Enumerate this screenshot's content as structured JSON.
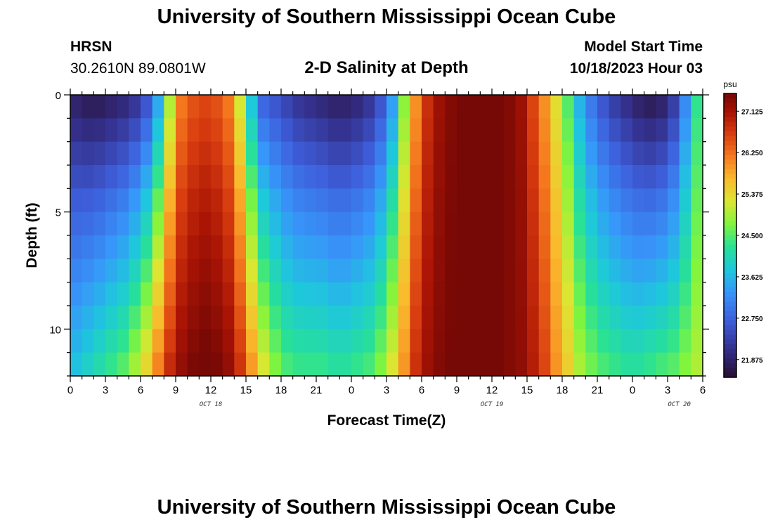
{
  "header": {
    "title": "University of Southern Mississippi Ocean Cube",
    "station_name": "HRSN",
    "coordinates": "30.2610N  89.0801W",
    "subtitle": "2-D Salinity at Depth",
    "model_start_label": "Model Start Time",
    "model_start_value": "10/18/2023 Hour 03"
  },
  "footer": {
    "title": "University of Southern Mississippi Ocean Cube"
  },
  "chart_data": {
    "type": "heatmap",
    "xlabel": "Forecast Time(Z)",
    "ylabel": "Depth (ft)",
    "x_unit": "hours since 10/18 00Z",
    "xlim": [
      0,
      54
    ],
    "ylim": [
      0,
      12
    ],
    "y_inverted": true,
    "x_tick_labels": [
      "0",
      "3",
      "6",
      "9",
      "12",
      "15",
      "18",
      "21",
      "0",
      "3",
      "6",
      "9",
      "12",
      "15",
      "18",
      "21",
      "0",
      "3",
      "6"
    ],
    "x_tick_hours": [
      0,
      3,
      6,
      9,
      12,
      15,
      18,
      21,
      24,
      27,
      30,
      33,
      36,
      39,
      42,
      45,
      48,
      51,
      54
    ],
    "date_labels": [
      {
        "text": "OCT 18",
        "hour": 12
      },
      {
        "text": "OCT 19",
        "hour": 36
      },
      {
        "text": "OCT 20",
        "hour": 52
      }
    ],
    "y_ticks": [
      0,
      5,
      10
    ],
    "y_tick_labels": [
      "0",
      "5",
      "10"
    ],
    "colorbar": {
      "units": "psu",
      "vmin": 21.5,
      "vmax": 27.5,
      "tick_values": [
        21.875,
        22.75,
        23.625,
        24.5,
        25.375,
        26.25,
        27.125
      ],
      "tick_labels": [
        "21.875",
        "22.750",
        "23.625",
        "24.500",
        "25.375",
        "26.250",
        "27.125"
      ]
    },
    "depths_ft": [
      0.5,
      1.5,
      2.5,
      3.5,
      4.5,
      5.5,
      6.5,
      7.5,
      8.5,
      9.5,
      10.5,
      11.5
    ],
    "hours": [
      0,
      1,
      2,
      3,
      4,
      5,
      6,
      7,
      8,
      9,
      10,
      11,
      12,
      13,
      14,
      15,
      16,
      17,
      18,
      19,
      20,
      21,
      22,
      23,
      24,
      25,
      26,
      27,
      28,
      29,
      30,
      31,
      32,
      33,
      34,
      35,
      36,
      37,
      38,
      39,
      40,
      41,
      42,
      43,
      44,
      45,
      46,
      47,
      48,
      49,
      50,
      51,
      52,
      53
    ],
    "surface_salinity_psu": [
      21.9,
      21.8,
      21.8,
      21.9,
      22.0,
      22.2,
      22.6,
      23.5,
      25.0,
      26.2,
      26.5,
      26.6,
      26.5,
      26.2,
      25.2,
      23.8,
      22.8,
      22.6,
      22.4,
      22.2,
      22.1,
      22.0,
      21.9,
      21.9,
      22.0,
      22.2,
      22.6,
      23.4,
      24.8,
      26.0,
      26.8,
      27.2,
      27.4,
      27.5,
      27.5,
      27.5,
      27.5,
      27.4,
      27.2,
      26.6,
      26.0,
      25.3,
      24.5,
      23.6,
      23.0,
      22.6,
      22.3,
      22.1,
      21.9,
      21.8,
      21.9,
      22.3,
      23.2,
      24.3
    ],
    "bottom_salinity_psu": [
      23.8,
      24.0,
      24.2,
      24.4,
      24.6,
      25.0,
      25.5,
      26.2,
      26.9,
      27.3,
      27.5,
      27.6,
      27.5,
      27.3,
      26.8,
      26.0,
      25.3,
      24.8,
      24.5,
      24.4,
      24.4,
      24.4,
      24.3,
      24.3,
      24.4,
      24.5,
      24.8,
      25.3,
      26.0,
      26.8,
      27.2,
      27.4,
      27.5,
      27.5,
      27.5,
      27.5,
      27.5,
      27.4,
      27.3,
      27.0,
      26.6,
      26.0,
      25.5,
      25.0,
      24.7,
      24.5,
      24.4,
      24.3,
      24.3,
      24.4,
      24.5,
      24.6,
      24.8,
      25.0
    ],
    "depth_weight": [
      0.0,
      0.1,
      0.2,
      0.3,
      0.4,
      0.48,
      0.56,
      0.64,
      0.72,
      0.8,
      0.88,
      0.96
    ]
  }
}
